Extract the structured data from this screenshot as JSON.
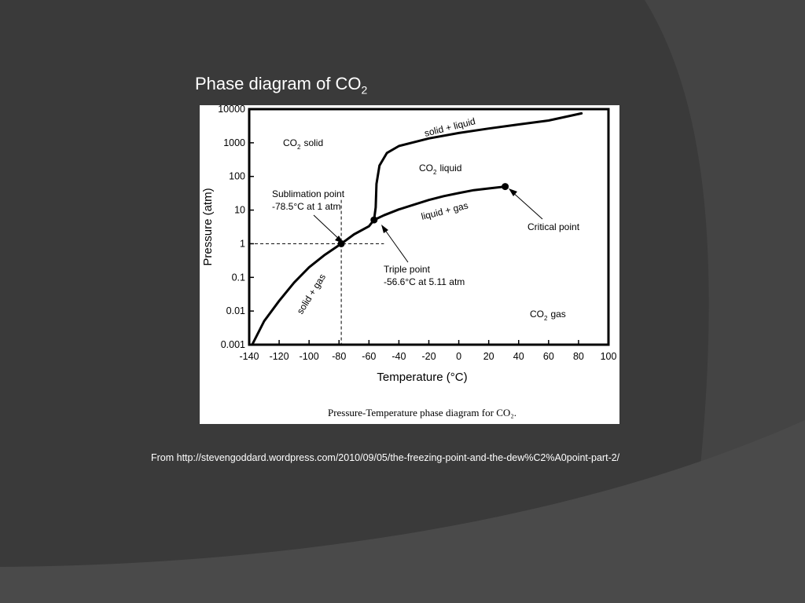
{
  "slide": {
    "title_main": "Phase diagram of CO",
    "title_sub": "2",
    "source": "From http://stevengoddard.wordpress.com/2010/09/05/the-freezing-point-and-the-dew%C2%A0point-part-2/"
  },
  "colors": {
    "background": "#3a3a3a",
    "panel": "#ffffff",
    "ink": "#000000"
  },
  "chart_data": {
    "type": "line",
    "xlabel": "Temperature (°C)",
    "ylabel": "Pressure (atm)",
    "caption": "Pressure-Temperature phase diagram for CO₂.",
    "xlim": [
      -140,
      100
    ],
    "ylim": [
      0.001,
      10000
    ],
    "y_scale": "log",
    "x_ticks": [
      -140,
      -120,
      -100,
      -80,
      -60,
      -40,
      -20,
      0,
      20,
      40,
      60,
      80,
      100
    ],
    "y_ticks": [
      {
        "value": 0.001,
        "label": "0.001"
      },
      {
        "value": 0.01,
        "label": "0.01"
      },
      {
        "value": 0.1,
        "label": "0.1"
      },
      {
        "value": 1,
        "label": "1"
      },
      {
        "value": 10,
        "label": "10"
      },
      {
        "value": 100,
        "label": "100"
      },
      {
        "value": 1000,
        "label": "1000"
      },
      {
        "value": 10000,
        "label": "10000"
      }
    ],
    "series": [
      {
        "name": "solid + gas",
        "points": [
          [
            -138,
            0.001
          ],
          [
            -130,
            0.005
          ],
          [
            -120,
            0.02
          ],
          [
            -110,
            0.07
          ],
          [
            -100,
            0.2
          ],
          [
            -90,
            0.45
          ],
          [
            -78.5,
            1
          ],
          [
            -70,
            1.9
          ],
          [
            -60,
            3.3
          ],
          [
            -56.6,
            5.11
          ]
        ]
      },
      {
        "name": "liquid + gas",
        "points": [
          [
            -56.6,
            5.11
          ],
          [
            -50,
            7
          ],
          [
            -40,
            10.5
          ],
          [
            -30,
            14.5
          ],
          [
            -20,
            20
          ],
          [
            -10,
            26
          ],
          [
            0,
            32
          ],
          [
            10,
            39
          ],
          [
            20,
            44
          ],
          [
            31,
            50
          ]
        ]
      },
      {
        "name": "solid + liquid",
        "points": [
          [
            -56.6,
            5.11
          ],
          [
            -55.5,
            12
          ],
          [
            -55,
            60
          ],
          [
            -53,
            210
          ],
          [
            -48,
            500
          ],
          [
            -40,
            800
          ],
          [
            -20,
            1350
          ],
          [
            0,
            1950
          ],
          [
            20,
            2650
          ],
          [
            40,
            3500
          ],
          [
            60,
            4600
          ],
          [
            82,
            7500
          ]
        ]
      }
    ],
    "markers": [
      {
        "name": "Sublimation point",
        "x": -78.5,
        "y": 1
      },
      {
        "name": "Triple point",
        "x": -56.6,
        "y": 5.11
      },
      {
        "name": "Critical point",
        "x": 31,
        "y": 50
      }
    ],
    "guides": {
      "x": -78.5,
      "y": 1
    },
    "annotations": {
      "co2_solid": "solid",
      "co2_liquid": "liquid",
      "co2_gas": "gas",
      "co2_prefix": "CO",
      "co2_sub": "2",
      "solid_liquid": "solid + liquid",
      "liquid_gas": "liquid + gas",
      "solid_gas": "solid + gas",
      "sublimation_line1": "Sublimation point",
      "sublimation_line2": "-78.5°C at 1 atm",
      "triple_line1": "Triple point",
      "triple_line2": "-56.6°C at 5.11 atm",
      "critical": "Critical point"
    }
  }
}
